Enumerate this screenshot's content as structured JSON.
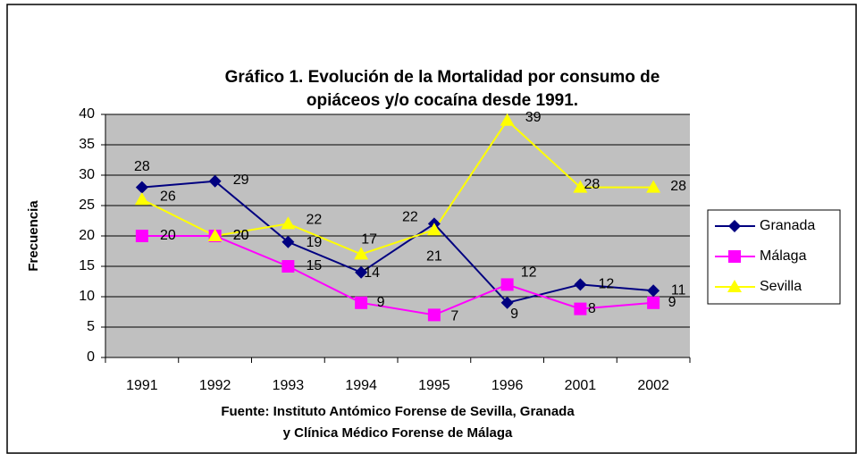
{
  "chart_data": {
    "type": "line",
    "title": [
      "Gráfico 1. Evolución de la Mortalidad por consumo de",
      "opiáceos y/o cocaína desde 1991."
    ],
    "x_label": [
      "Fuente: Instituto Antómico Forense de Sevilla, Granada",
      "y Clínica Médico Forense de Málaga"
    ],
    "y_label": "Frecuencia",
    "categories": [
      "1991",
      "1992",
      "1993",
      "1994",
      "1995",
      "1996",
      "2001",
      "2002"
    ],
    "series": [
      {
        "name": "Granada",
        "color": "#000080",
        "marker": "diamond",
        "values": [
          28,
          29,
          19,
          14,
          22,
          9,
          12,
          11
        ]
      },
      {
        "name": "Málaga",
        "color": "#ff00ff",
        "marker": "square",
        "values": [
          20,
          20,
          15,
          9,
          7,
          12,
          8,
          9
        ]
      },
      {
        "name": "Sevilla",
        "color": "#ffff00",
        "marker": "triangle",
        "values": [
          26,
          20,
          22,
          17,
          21,
          39,
          28,
          28
        ]
      }
    ],
    "ylim": [
      0,
      40
    ],
    "yticks": [
      0,
      5,
      10,
      15,
      20,
      25,
      30,
      35,
      40
    ],
    "grid": true,
    "legend": "right"
  }
}
